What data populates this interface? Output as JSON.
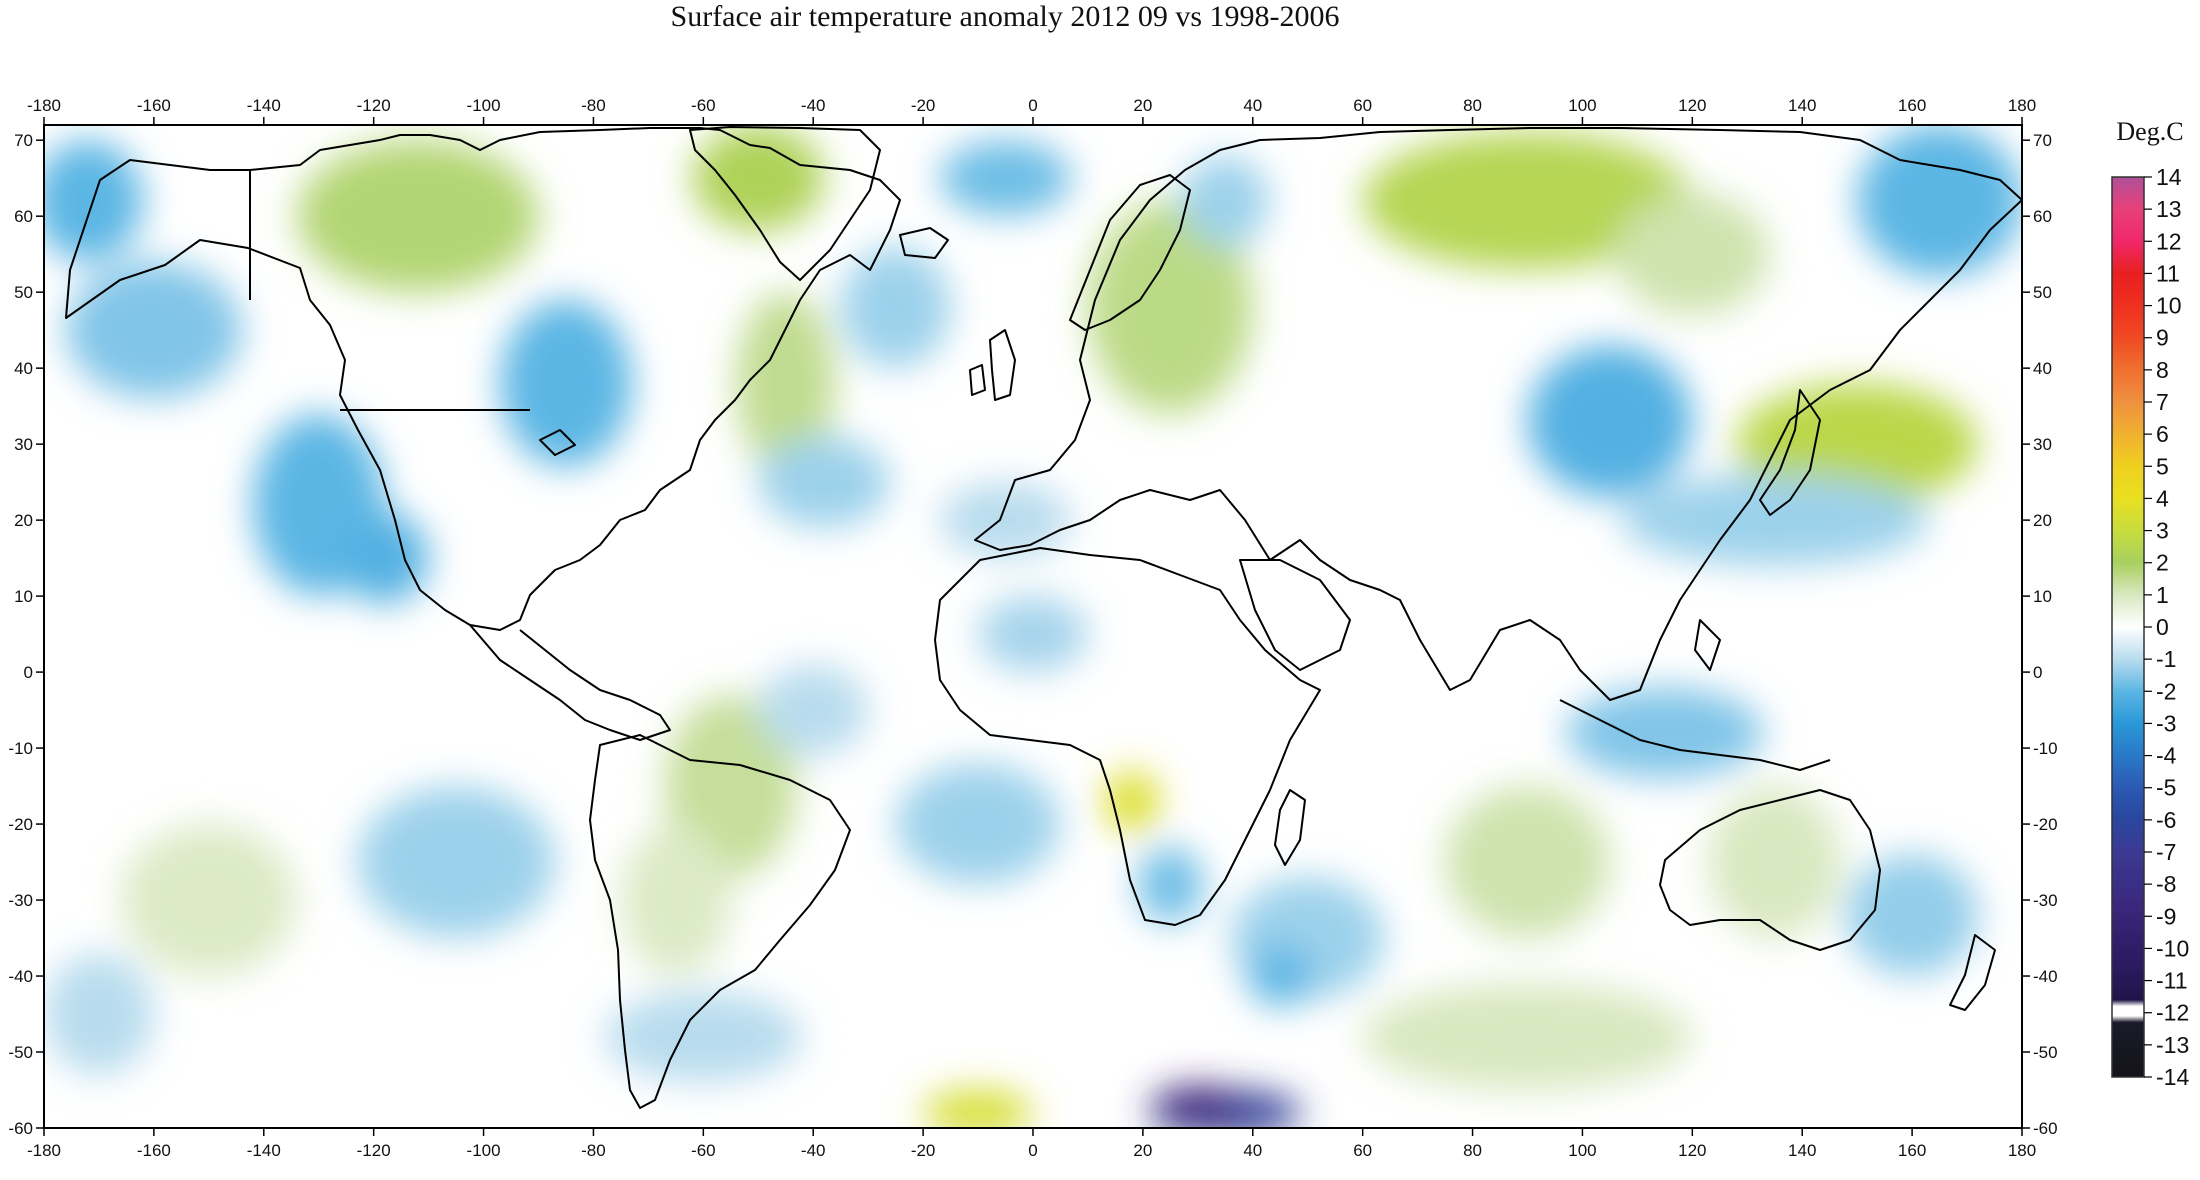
{
  "title": "Surface air temperature anomaly 2012 09 vs 1998-2006",
  "unit_label": "Deg.C",
  "axes": {
    "lon_ticks": [
      -180,
      -160,
      -140,
      -120,
      -100,
      -80,
      -60,
      -40,
      -20,
      0,
      20,
      40,
      60,
      80,
      100,
      120,
      140,
      160,
      180
    ],
    "lat_ticks": [
      70,
      60,
      50,
      40,
      30,
      20,
      10,
      0,
      -10,
      -20,
      -30,
      -40,
      -50,
      -60
    ],
    "lon_range": [
      -180,
      180
    ],
    "lat_range": [
      -60,
      72
    ]
  },
  "colorbar": {
    "labels": [
      "14",
      "13",
      "12",
      "11",
      "10",
      "9",
      "8",
      "7",
      "6",
      "5",
      "4",
      "3",
      "2",
      "1",
      "0",
      "-1",
      "-2",
      "-3",
      "-4",
      "-5",
      "-6",
      "-7",
      "-8",
      "-9",
      "-10",
      "-11",
      "-12",
      "-13",
      "-14"
    ],
    "range": [
      -14,
      14
    ],
    "stops": [
      {
        "v": 14,
        "c": "#b0509a"
      },
      {
        "v": 13,
        "c": "#e8407a"
      },
      {
        "v": 12,
        "c": "#f0286a"
      },
      {
        "v": 11,
        "c": "#e82020"
      },
      {
        "v": 10,
        "c": "#f03020"
      },
      {
        "v": 9,
        "c": "#f04a24"
      },
      {
        "v": 8,
        "c": "#f07030"
      },
      {
        "v": 7,
        "c": "#f09040"
      },
      {
        "v": 6,
        "c": "#f0b030"
      },
      {
        "v": 5,
        "c": "#f0d020"
      },
      {
        "v": 4,
        "c": "#e8e020"
      },
      {
        "v": 3,
        "c": "#c8dc3c"
      },
      {
        "v": 2,
        "c": "#a8d060"
      },
      {
        "v": 1,
        "c": "#d8e8c0"
      },
      {
        "v": 0,
        "c": "#ffffff"
      },
      {
        "v": -1,
        "c": "#b8dcee"
      },
      {
        "v": -2,
        "c": "#5cb6e4"
      },
      {
        "v": -3,
        "c": "#2a98d8"
      },
      {
        "v": -4,
        "c": "#2a78c8"
      },
      {
        "v": -5,
        "c": "#2a5ab4"
      },
      {
        "v": -6,
        "c": "#2a469e"
      },
      {
        "v": -7,
        "c": "#3a3a92"
      },
      {
        "v": -8,
        "c": "#3a2e86"
      },
      {
        "v": -9,
        "c": "#3a2478"
      },
      {
        "v": -10,
        "c": "#301c68"
      },
      {
        "v": -11,
        "c": "#261858"
      },
      {
        "v": -11.6,
        "c": "#201448"
      },
      {
        "v": -11.8,
        "c": "#ffffff"
      },
      {
        "v": -12.1,
        "c": "#ffffff"
      },
      {
        "v": -12.3,
        "c": "#1a1a2a"
      },
      {
        "v": -14,
        "c": "#141418"
      }
    ]
  },
  "anomaly_blobs": [
    {
      "lon": -172,
      "lat": 62,
      "rx": 10,
      "ry": 8,
      "v": -2.0
    },
    {
      "lon": -160,
      "lat": 45,
      "rx": 16,
      "ry": 9,
      "v": -1.6
    },
    {
      "lon": -130,
      "lat": 22,
      "rx": 12,
      "ry": 12,
      "v": -2.0
    },
    {
      "lon": -118,
      "lat": 15,
      "rx": 8,
      "ry": 6,
      "v": -2.2
    },
    {
      "lon": -112,
      "lat": 60,
      "rx": 22,
      "ry": 10,
      "v": 1.8
    },
    {
      "lon": -85,
      "lat": 38,
      "rx": 12,
      "ry": 11,
      "v": -2.0
    },
    {
      "lon": -50,
      "lat": 65,
      "rx": 12,
      "ry": 7,
      "v": 2.2
    },
    {
      "lon": -45,
      "lat": 38,
      "rx": 9,
      "ry": 12,
      "v": 1.5
    },
    {
      "lon": -25,
      "lat": 48,
      "rx": 10,
      "ry": 8,
      "v": -1.3
    },
    {
      "lon": -5,
      "lat": 65,
      "rx": 12,
      "ry": 5,
      "v": -1.8
    },
    {
      "lon": -38,
      "lat": 25,
      "rx": 12,
      "ry": 6,
      "v": -1.3
    },
    {
      "lon": -5,
      "lat": 20,
      "rx": 12,
      "ry": 5,
      "v": -1.0
    },
    {
      "lon": 25,
      "lat": 48,
      "rx": 15,
      "ry": 14,
      "v": 1.6
    },
    {
      "lon": 35,
      "lat": 62,
      "rx": 8,
      "ry": 6,
      "v": -1.3
    },
    {
      "lon": 90,
      "lat": 62,
      "rx": 30,
      "ry": 9,
      "v": 2.4
    },
    {
      "lon": 105,
      "lat": 33,
      "rx": 15,
      "ry": 10,
      "v": -2.2
    },
    {
      "lon": 150,
      "lat": 30,
      "rx": 22,
      "ry": 8,
      "v": 2.6
    },
    {
      "lon": 165,
      "lat": 62,
      "rx": 15,
      "ry": 10,
      "v": -2.0
    },
    {
      "lon": 120,
      "lat": 55,
      "rx": 14,
      "ry": 8,
      "v": 1.2
    },
    {
      "lon": 135,
      "lat": 20,
      "rx": 28,
      "ry": 6,
      "v": -1.3
    },
    {
      "lon": 115,
      "lat": -8,
      "rx": 18,
      "ry": 6,
      "v": -1.6
    },
    {
      "lon": 135,
      "lat": -25,
      "rx": 12,
      "ry": 10,
      "v": 1.0
    },
    {
      "lon": 160,
      "lat": -32,
      "rx": 12,
      "ry": 8,
      "v": -1.4
    },
    {
      "lon": 90,
      "lat": -25,
      "rx": 15,
      "ry": 10,
      "v": 1.2
    },
    {
      "lon": 50,
      "lat": -35,
      "rx": 14,
      "ry": 8,
      "v": -1.3
    },
    {
      "lon": 18,
      "lat": -17,
      "rx": 5,
      "ry": 4,
      "v": 3.6
    },
    {
      "lon": 25,
      "lat": -28,
      "rx": 6,
      "ry": 5,
      "v": -1.8
    },
    {
      "lon": -55,
      "lat": -15,
      "rx": 12,
      "ry": 12,
      "v": 1.4
    },
    {
      "lon": -65,
      "lat": -30,
      "rx": 10,
      "ry": 10,
      "v": 0.9
    },
    {
      "lon": -40,
      "lat": -5,
      "rx": 10,
      "ry": 6,
      "v": -1.0
    },
    {
      "lon": -105,
      "lat": -25,
      "rx": 18,
      "ry": 10,
      "v": -1.3
    },
    {
      "lon": -150,
      "lat": -30,
      "rx": 16,
      "ry": 10,
      "v": 0.9
    },
    {
      "lon": -10,
      "lat": -20,
      "rx": 15,
      "ry": 8,
      "v": -1.3
    },
    {
      "lon": -60,
      "lat": -48,
      "rx": 18,
      "ry": 6,
      "v": -1.0
    },
    {
      "lon": 90,
      "lat": -48,
      "rx": 30,
      "ry": 7,
      "v": 1.0
    },
    {
      "lon": -10,
      "lat": -58,
      "rx": 10,
      "ry": 3,
      "v": 3.4
    },
    {
      "lon": 35,
      "lat": -58,
      "rx": 14,
      "ry": 3,
      "v": -6.5
    },
    {
      "lon": 30,
      "lat": -57,
      "rx": 8,
      "ry": 2.5,
      "v": -9.0
    },
    {
      "lon": 45,
      "lat": -40,
      "rx": 6,
      "ry": 4,
      "v": -2.0
    },
    {
      "lon": -170,
      "lat": -45,
      "rx": 10,
      "ry": 8,
      "v": -1.0
    },
    {
      "lon": 0,
      "lat": 5,
      "rx": 10,
      "ry": 5,
      "v": -1.2
    }
  ]
}
